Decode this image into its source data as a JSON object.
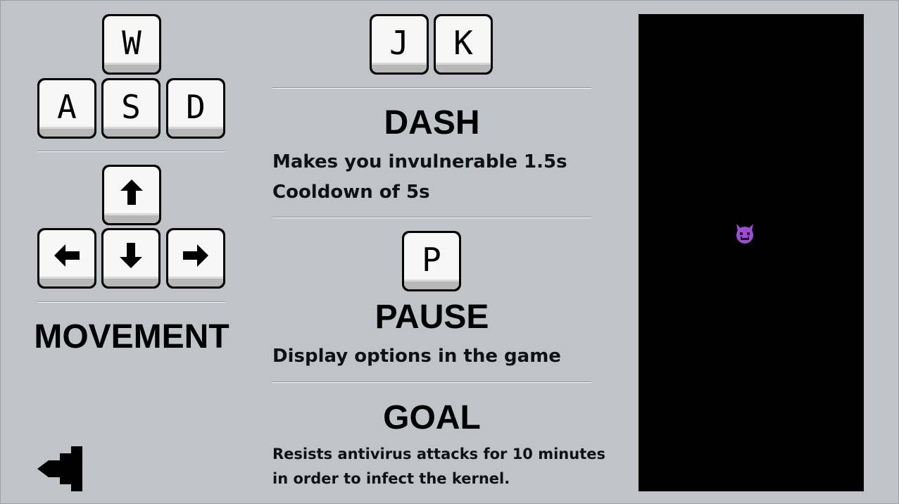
{
  "movement": {
    "keys_wasd": [
      "W",
      "A",
      "S",
      "D"
    ],
    "keys_arrows": [
      "up",
      "left",
      "down",
      "right"
    ],
    "title": "MOVEMENT"
  },
  "dash": {
    "keys": [
      "J",
      "K"
    ],
    "title": "DASH",
    "lines": [
      "Makes you invulnerable 1.5s",
      "Cooldown of 5s"
    ]
  },
  "pause": {
    "key": "P",
    "title": "PAUSE",
    "lines": [
      "Display options in the game"
    ]
  },
  "goal": {
    "title": "GOAL",
    "lines": [
      "Resists antivirus attacks for 10 minutes",
      "in order to infect the kernel."
    ]
  },
  "icons": {
    "player": "purple-devil-icon",
    "back": "back-arrow-icon"
  },
  "colors": {
    "background": "#c0c3c8",
    "viewport": "#000000",
    "player": "#9b4fd0"
  }
}
